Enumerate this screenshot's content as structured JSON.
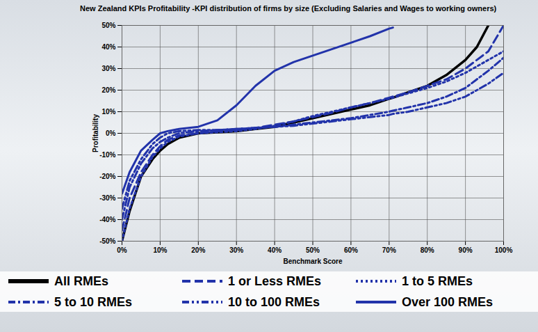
{
  "chart_data": {
    "type": "line",
    "title": "New Zealand KPIs Profitability -KPI distribution of firms by size (Excluding Salaries and Wages to working owners)",
    "x_label": "Benchmark Score",
    "y_label": "Profitability",
    "x": [
      0,
      2,
      5,
      8,
      10,
      12,
      15,
      20,
      25,
      30,
      35,
      40,
      45,
      50,
      55,
      60,
      65,
      70,
      71,
      75,
      80,
      85,
      90,
      93,
      96,
      100
    ],
    "series": [
      {
        "name": "All RMEs",
        "color": "#000000",
        "line_style": "solid",
        "values": [
          -50,
          -36,
          -20,
          -12,
          -8,
          -5,
          -2,
          0,
          0.5,
          1,
          2,
          3,
          5,
          7,
          9,
          11,
          13,
          16,
          16.5,
          19,
          22,
          27,
          34,
          40,
          50,
          null
        ]
      },
      {
        "name": "1 or Less RMEs",
        "color": "#2233aa",
        "line_style": "dashed",
        "values": [
          -45,
          -30,
          -18,
          -10,
          -6,
          -3,
          -1,
          0,
          1,
          1.5,
          2.5,
          4,
          5.5,
          7.5,
          9.5,
          12,
          14,
          16.5,
          17,
          19,
          22,
          25,
          30,
          34,
          38,
          50
        ]
      },
      {
        "name": "1 to 5 RMEs",
        "color": "#2233aa",
        "line_style": "dotted",
        "values": [
          -50,
          -35,
          -20,
          -11,
          -7,
          -4,
          -1.5,
          0,
          0.5,
          1,
          2,
          3.5,
          5.5,
          8,
          10,
          12,
          14,
          16,
          16.5,
          18.5,
          21,
          24,
          28,
          31,
          34,
          38
        ]
      },
      {
        "name": "5 to 10 RMEs",
        "color": "#2233aa",
        "line_style": "dashdot",
        "values": [
          -40,
          -25,
          -14,
          -7,
          -4,
          -2,
          0,
          1,
          1.5,
          2,
          2.5,
          3,
          4,
          5,
          6,
          7,
          8.5,
          10,
          10.5,
          12,
          14,
          17,
          21,
          25,
          29,
          35
        ]
      },
      {
        "name": "10 to 100 RMEs",
        "color": "#2233aa",
        "line_style": "dashdotdot",
        "values": [
          -35,
          -22,
          -12,
          -5,
          -2,
          0,
          1,
          1.5,
          1.5,
          2,
          2.5,
          3,
          3.5,
          4.5,
          5.5,
          6.5,
          7.5,
          8.5,
          9,
          10,
          12,
          14,
          17,
          20,
          23,
          28
        ]
      },
      {
        "name": "Over 100 RMEs",
        "color": "#2233aa",
        "line_style": "solid",
        "values": [
          -28,
          -18,
          -8,
          -3,
          0,
          1,
          2,
          3,
          6,
          13,
          22,
          29,
          33,
          36,
          39,
          42,
          45,
          48.5,
          49,
          null,
          null,
          null,
          null,
          null,
          null,
          null
        ]
      }
    ],
    "xlim": [
      0,
      100
    ],
    "xticks": [
      {
        "value": 0,
        "label": "0%"
      },
      {
        "value": 10,
        "label": "10%"
      },
      {
        "value": 20,
        "label": "20%"
      },
      {
        "value": 30,
        "label": "30%"
      },
      {
        "value": 40,
        "label": "40%"
      },
      {
        "value": 50,
        "label": "50%"
      },
      {
        "value": 60,
        "label": "60%"
      },
      {
        "value": 70,
        "label": "70%"
      },
      {
        "value": 80,
        "label": "80%"
      },
      {
        "value": 90,
        "label": "90%"
      },
      {
        "value": 100,
        "label": "100%"
      }
    ],
    "ylim": [
      -50,
      50
    ],
    "yticks": [
      {
        "value": -50,
        "label": "-50%"
      },
      {
        "value": -40,
        "label": "-40%"
      },
      {
        "value": -30,
        "label": "-30%"
      },
      {
        "value": -20,
        "label": "-20%"
      },
      {
        "value": -10,
        "label": "-10%"
      },
      {
        "value": 0,
        "label": "0%"
      },
      {
        "value": 10,
        "label": "10%"
      },
      {
        "value": 20,
        "label": "20%"
      },
      {
        "value": 30,
        "label": "30%"
      },
      {
        "value": 40,
        "label": "40%"
      },
      {
        "value": 50,
        "label": "50%"
      }
    ],
    "grid": true,
    "legend": "bottom"
  }
}
